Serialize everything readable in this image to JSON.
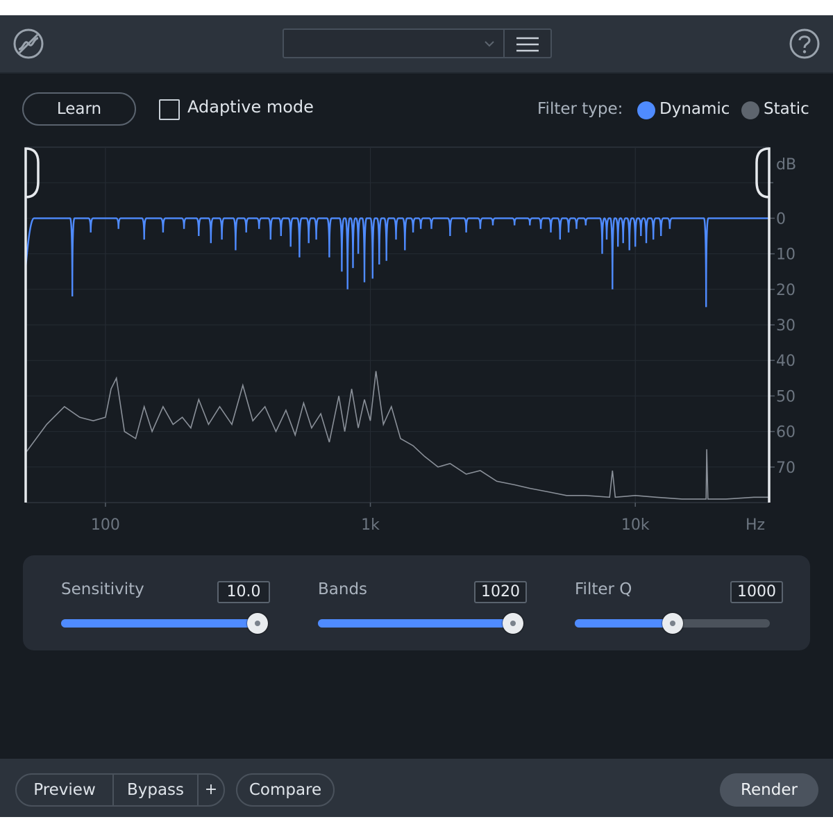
{
  "titlebar": {
    "logo_icon": "spectral-de-ess-logo-icon",
    "preset_value": "",
    "menu_icon": "hamburger-menu-icon",
    "help_icon": "help-question-icon"
  },
  "toolbar": {
    "learn_label": "Learn",
    "adaptive_mode_label": "Adaptive mode",
    "adaptive_mode_checked": false,
    "filter_type_label": "Filter type:",
    "filter_type_options": [
      "Dynamic",
      "Static"
    ],
    "filter_type_selected": "Dynamic"
  },
  "colors": {
    "accent": "#4f8bff",
    "spectrum": "#8a9099",
    "background": "#171c22"
  },
  "chart_data": {
    "type": "line",
    "x_scale": "log",
    "xlim": [
      50,
      32000
    ],
    "x_ticks": [
      "100",
      "1k",
      "10k"
    ],
    "x_unit": "Hz",
    "ylim": [
      80,
      -20
    ],
    "y_ticks": [
      "0",
      "10",
      "20",
      "30",
      "40",
      "50",
      "60",
      "70"
    ],
    "y_unit": "dB",
    "grid": true,
    "series": [
      {
        "id": "filter_curve",
        "color": "#4f8bff",
        "notches": [
          {
            "hz": 55,
            "depth": 8
          },
          {
            "hz": 75,
            "depth": 22
          },
          {
            "hz": 88,
            "depth": 4
          },
          {
            "hz": 112,
            "depth": 3
          },
          {
            "hz": 140,
            "depth": 6
          },
          {
            "hz": 165,
            "depth": 4
          },
          {
            "hz": 198,
            "depth": 3
          },
          {
            "hz": 225,
            "depth": 5
          },
          {
            "hz": 250,
            "depth": 7
          },
          {
            "hz": 275,
            "depth": 6
          },
          {
            "hz": 310,
            "depth": 9
          },
          {
            "hz": 340,
            "depth": 4
          },
          {
            "hz": 380,
            "depth": 3
          },
          {
            "hz": 420,
            "depth": 6
          },
          {
            "hz": 460,
            "depth": 5
          },
          {
            "hz": 500,
            "depth": 8
          },
          {
            "hz": 540,
            "depth": 11
          },
          {
            "hz": 585,
            "depth": 7
          },
          {
            "hz": 625,
            "depth": 6
          },
          {
            "hz": 700,
            "depth": 11
          },
          {
            "hz": 780,
            "depth": 15
          },
          {
            "hz": 820,
            "depth": 20
          },
          {
            "hz": 860,
            "depth": 14
          },
          {
            "hz": 900,
            "depth": 10
          },
          {
            "hz": 950,
            "depth": 18
          },
          {
            "hz": 1020,
            "depth": 17
          },
          {
            "hz": 1080,
            "depth": 13
          },
          {
            "hz": 1150,
            "depth": 12
          },
          {
            "hz": 1250,
            "depth": 6
          },
          {
            "hz": 1350,
            "depth": 9
          },
          {
            "hz": 1450,
            "depth": 4
          },
          {
            "hz": 1550,
            "depth": 3
          },
          {
            "hz": 1700,
            "depth": 3
          },
          {
            "hz": 2000,
            "depth": 5
          },
          {
            "hz": 2300,
            "depth": 4
          },
          {
            "hz": 2600,
            "depth": 3
          },
          {
            "hz": 2900,
            "depth": 2
          },
          {
            "hz": 3500,
            "depth": 2
          },
          {
            "hz": 4000,
            "depth": 2
          },
          {
            "hz": 4400,
            "depth": 3
          },
          {
            "hz": 4800,
            "depth": 4
          },
          {
            "hz": 5200,
            "depth": 6
          },
          {
            "hz": 5600,
            "depth": 4
          },
          {
            "hz": 6000,
            "depth": 3
          },
          {
            "hz": 6500,
            "depth": 2
          },
          {
            "hz": 7500,
            "depth": 10
          },
          {
            "hz": 7800,
            "depth": 6
          },
          {
            "hz": 8200,
            "depth": 20
          },
          {
            "hz": 8600,
            "depth": 8
          },
          {
            "hz": 9000,
            "depth": 7
          },
          {
            "hz": 9500,
            "depth": 9
          },
          {
            "hz": 10000,
            "depth": 8
          },
          {
            "hz": 10500,
            "depth": 5
          },
          {
            "hz": 11000,
            "depth": 7
          },
          {
            "hz": 11700,
            "depth": 6
          },
          {
            "hz": 12500,
            "depth": 5
          },
          {
            "hz": 13500,
            "depth": 3
          },
          {
            "hz": 18500,
            "depth": 25
          }
        ]
      },
      {
        "id": "input_spectrum",
        "color": "#8a9099",
        "points": [
          [
            50,
            66
          ],
          [
            60,
            58
          ],
          [
            70,
            53
          ],
          [
            80,
            56
          ],
          [
            90,
            57
          ],
          [
            100,
            56
          ],
          [
            105,
            48
          ],
          [
            110,
            45
          ],
          [
            118,
            60
          ],
          [
            130,
            62
          ],
          [
            140,
            53
          ],
          [
            150,
            60
          ],
          [
            165,
            53
          ],
          [
            180,
            58
          ],
          [
            195,
            56
          ],
          [
            210,
            59
          ],
          [
            225,
            51
          ],
          [
            245,
            58
          ],
          [
            270,
            53
          ],
          [
            300,
            58
          ],
          [
            330,
            47
          ],
          [
            360,
            57
          ],
          [
            400,
            53
          ],
          [
            440,
            60
          ],
          [
            480,
            54
          ],
          [
            520,
            61
          ],
          [
            560,
            52
          ],
          [
            600,
            59
          ],
          [
            650,
            55
          ],
          [
            700,
            63
          ],
          [
            760,
            50
          ],
          [
            800,
            60
          ],
          [
            850,
            48
          ],
          [
            900,
            59
          ],
          [
            950,
            51
          ],
          [
            1000,
            57
          ],
          [
            1050,
            43
          ],
          [
            1120,
            58
          ],
          [
            1200,
            53
          ],
          [
            1300,
            62
          ],
          [
            1450,
            64
          ],
          [
            1600,
            67
          ],
          [
            1800,
            70
          ],
          [
            2000,
            69
          ],
          [
            2300,
            72
          ],
          [
            2600,
            71
          ],
          [
            3000,
            74
          ],
          [
            3500,
            75
          ],
          [
            4000,
            76
          ],
          [
            4700,
            77
          ],
          [
            5500,
            78
          ],
          [
            6500,
            78
          ],
          [
            8000,
            78.5
          ],
          [
            8200,
            71
          ],
          [
            8400,
            78.5
          ],
          [
            10000,
            78
          ],
          [
            12000,
            78.5
          ],
          [
            15000,
            79
          ],
          [
            18500,
            79
          ],
          [
            18600,
            65
          ],
          [
            18800,
            79
          ],
          [
            22000,
            79
          ],
          [
            28000,
            78.5
          ],
          [
            32000,
            78.5
          ]
        ]
      }
    ]
  },
  "controls": {
    "sensitivity": {
      "label": "Sensitivity",
      "value_text": "10.0",
      "fraction": 1.0
    },
    "bands": {
      "label": "Bands",
      "value_text": "1020",
      "fraction": 1.0
    },
    "filter_q": {
      "label": "Filter Q",
      "value_text": "1000",
      "fraction": 0.5
    }
  },
  "footer": {
    "preview_label": "Preview",
    "bypass_label": "Bypass",
    "plus_label": "+",
    "compare_label": "Compare",
    "render_label": "Render"
  }
}
